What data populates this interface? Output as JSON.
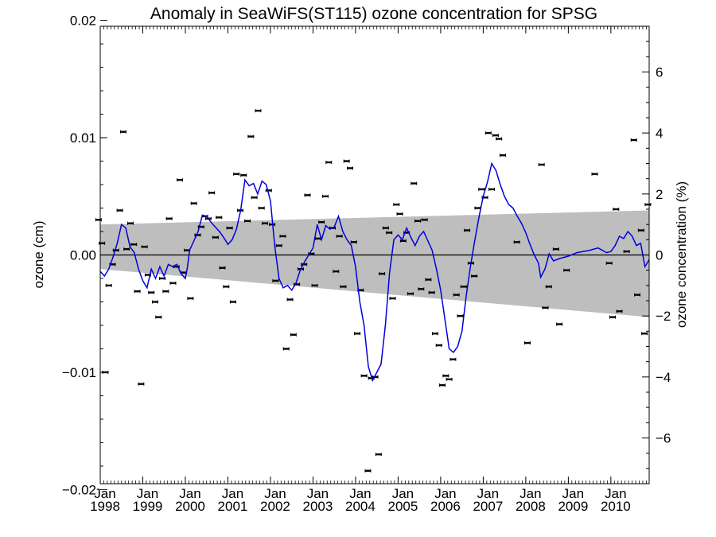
{
  "chart_data": {
    "type": "scatter",
    "title": "Anomaly in SeaWiFS(ST115) ozone concentration for SPSG",
    "ylabel": "ozone (cm)",
    "ylabel_right": "ozone concentration (%)",
    "xlabel": "",
    "xlim": [
      1998.0,
      2010.9
    ],
    "ylim": [
      -0.0195,
      0.0195
    ],
    "ylim_right": [
      -7.5,
      7.5
    ],
    "y_ticks": [
      {
        "v": -0.02,
        "label": "−0.02"
      },
      {
        "v": -0.01,
        "label": "−0.01"
      },
      {
        "v": 0.0,
        "label": "0.00"
      },
      {
        "v": 0.01,
        "label": "0.01"
      },
      {
        "v": 0.02,
        "label": "0.02"
      }
    ],
    "y_right_ticks": [
      {
        "v": -6,
        "label": "−6"
      },
      {
        "v": -4,
        "label": "−4"
      },
      {
        "v": -2,
        "label": "−2"
      },
      {
        "v": 0,
        "label": "0"
      },
      {
        "v": 2,
        "label": "2"
      },
      {
        "v": 4,
        "label": "4"
      },
      {
        "v": 6,
        "label": "6"
      }
    ],
    "x_ticks": [
      {
        "v": 1998.0,
        "month": "Jan",
        "year": "1998"
      },
      {
        "v": 1999.0,
        "month": "Jan",
        "year": "1999"
      },
      {
        "v": 2000.0,
        "month": "Jan",
        "year": "2000"
      },
      {
        "v": 2001.0,
        "month": "Jan",
        "year": "2001"
      },
      {
        "v": 2002.0,
        "month": "Jan",
        "year": "2002"
      },
      {
        "v": 2003.0,
        "month": "Jan",
        "year": "2003"
      },
      {
        "v": 2004.0,
        "month": "Jan",
        "year": "2004"
      },
      {
        "v": 2005.0,
        "month": "Jan",
        "year": "2005"
      },
      {
        "v": 2006.0,
        "month": "Jan",
        "year": "2006"
      },
      {
        "v": 2007.0,
        "month": "Jan",
        "year": "2007"
      },
      {
        "v": 2008.0,
        "month": "Jan",
        "year": "2008"
      },
      {
        "v": 2009.0,
        "month": "Jan",
        "year": "2009"
      },
      {
        "v": 2010.0,
        "month": "Jan",
        "year": "2010"
      }
    ],
    "trend_band": {
      "start": {
        "x": 1998.0,
        "lower": -0.0012,
        "upper": 0.0026
      },
      "end": {
        "x": 2010.9,
        "lower": -0.0053,
        "upper": 0.0038
      }
    },
    "zero_line": 0.0,
    "points": [
      {
        "x": 1997.96,
        "y": 0.003
      },
      {
        "x": 1998.04,
        "y": 0.001
      },
      {
        "x": 1998.12,
        "y": -0.01
      },
      {
        "x": 1998.2,
        "y": -0.0026
      },
      {
        "x": 1998.29,
        "y": -0.0008
      },
      {
        "x": 1998.37,
        "y": 0.0004
      },
      {
        "x": 1998.46,
        "y": 0.0038
      },
      {
        "x": 1998.54,
        "y": 0.0105
      },
      {
        "x": 1998.62,
        "y": 0.0005
      },
      {
        "x": 1998.71,
        "y": 0.0027
      },
      {
        "x": 1998.79,
        "y": 0.0009
      },
      {
        "x": 1998.87,
        "y": -0.0031
      },
      {
        "x": 1998.96,
        "y": -0.011
      },
      {
        "x": 1999.04,
        "y": 0.0007
      },
      {
        "x": 1999.12,
        "y": -0.0017
      },
      {
        "x": 1999.2,
        "y": -0.0032
      },
      {
        "x": 1999.29,
        "y": -0.004
      },
      {
        "x": 1999.37,
        "y": -0.0053
      },
      {
        "x": 1999.46,
        "y": -0.002
      },
      {
        "x": 1999.54,
        "y": -0.0031
      },
      {
        "x": 1999.62,
        "y": 0.0031
      },
      {
        "x": 1999.71,
        "y": -0.0024
      },
      {
        "x": 1999.79,
        "y": -0.001
      },
      {
        "x": 1999.87,
        "y": 0.0064
      },
      {
        "x": 1999.96,
        "y": -0.0015
      },
      {
        "x": 2000.04,
        "y": 0.0004
      },
      {
        "x": 2000.12,
        "y": -0.0037
      },
      {
        "x": 2000.2,
        "y": 0.0044
      },
      {
        "x": 2000.29,
        "y": 0.0017
      },
      {
        "x": 2000.37,
        "y": 0.0024
      },
      {
        "x": 2000.46,
        "y": 0.0033
      },
      {
        "x": 2000.54,
        "y": 0.0031
      },
      {
        "x": 2000.62,
        "y": 0.0053
      },
      {
        "x": 2000.71,
        "y": 0.0015
      },
      {
        "x": 2000.79,
        "y": 0.0032
      },
      {
        "x": 2000.87,
        "y": -0.0011
      },
      {
        "x": 2000.96,
        "y": -0.0027
      },
      {
        "x": 2001.04,
        "y": 0.0023
      },
      {
        "x": 2001.12,
        "y": -0.004
      },
      {
        "x": 2001.2,
        "y": 0.0069
      },
      {
        "x": 2001.29,
        "y": 0.0038
      },
      {
        "x": 2001.37,
        "y": 0.0068
      },
      {
        "x": 2001.46,
        "y": 0.0029
      },
      {
        "x": 2001.54,
        "y": 0.0101
      },
      {
        "x": 2001.62,
        "y": 0.0049
      },
      {
        "x": 2001.71,
        "y": 0.0123
      },
      {
        "x": 2001.79,
        "y": 0.004
      },
      {
        "x": 2001.87,
        "y": 0.0027
      },
      {
        "x": 2001.96,
        "y": 0.0055
      },
      {
        "x": 2002.04,
        "y": 0.0026
      },
      {
        "x": 2002.12,
        "y": -0.0022
      },
      {
        "x": 2002.2,
        "y": 0.0008
      },
      {
        "x": 2002.29,
        "y": 0.0016
      },
      {
        "x": 2002.37,
        "y": -0.008
      },
      {
        "x": 2002.46,
        "y": -0.0038
      },
      {
        "x": 2002.54,
        "y": -0.0068
      },
      {
        "x": 2002.62,
        "y": -0.0025
      },
      {
        "x": 2002.71,
        "y": -0.0012
      },
      {
        "x": 2002.79,
        "y": -0.0008
      },
      {
        "x": 2002.87,
        "y": 0.0051
      },
      {
        "x": 2002.96,
        "y": 0.0001
      },
      {
        "x": 2003.04,
        "y": -0.0026
      },
      {
        "x": 2003.12,
        "y": 0.0014
      },
      {
        "x": 2003.2,
        "y": 0.0028
      },
      {
        "x": 2003.29,
        "y": 0.005
      },
      {
        "x": 2003.37,
        "y": 0.0079
      },
      {
        "x": 2003.46,
        "y": 0.0023
      },
      {
        "x": 2003.54,
        "y": -0.0014
      },
      {
        "x": 2003.62,
        "y": 0.0016
      },
      {
        "x": 2003.71,
        "y": -0.0027
      },
      {
        "x": 2003.79,
        "y": 0.008
      },
      {
        "x": 2003.87,
        "y": 0.0074
      },
      {
        "x": 2003.96,
        "y": 0.0011
      },
      {
        "x": 2004.04,
        "y": -0.0067
      },
      {
        "x": 2004.12,
        "y": -0.003
      },
      {
        "x": 2004.2,
        "y": -0.0103
      },
      {
        "x": 2004.29,
        "y": -0.0184
      },
      {
        "x": 2004.37,
        "y": -0.0105
      },
      {
        "x": 2004.46,
        "y": -0.0104
      },
      {
        "x": 2004.54,
        "y": -0.017
      },
      {
        "x": 2004.62,
        "y": -0.0016
      },
      {
        "x": 2004.71,
        "y": 0.0023
      },
      {
        "x": 2004.79,
        "y": 0.0019
      },
      {
        "x": 2004.87,
        "y": -0.0037
      },
      {
        "x": 2004.96,
        "y": 0.0043
      },
      {
        "x": 2005.04,
        "y": 0.0035
      },
      {
        "x": 2005.12,
        "y": 0.0012
      },
      {
        "x": 2005.2,
        "y": 0.0019
      },
      {
        "x": 2005.29,
        "y": -0.0033
      },
      {
        "x": 2005.37,
        "y": 0.0061
      },
      {
        "x": 2005.46,
        "y": 0.0029
      },
      {
        "x": 2005.54,
        "y": -0.0029
      },
      {
        "x": 2005.62,
        "y": 0.003
      },
      {
        "x": 2005.71,
        "y": -0.0021
      },
      {
        "x": 2005.79,
        "y": -0.0032
      },
      {
        "x": 2005.87,
        "y": -0.0067
      },
      {
        "x": 2005.96,
        "y": -0.0077
      },
      {
        "x": 2006.04,
        "y": -0.0111
      },
      {
        "x": 2006.12,
        "y": -0.0103
      },
      {
        "x": 2006.2,
        "y": -0.0106
      },
      {
        "x": 2006.29,
        "y": -0.0089
      },
      {
        "x": 2006.37,
        "y": -0.0034
      },
      {
        "x": 2006.46,
        "y": -0.0052
      },
      {
        "x": 2006.54,
        "y": -0.0027
      },
      {
        "x": 2006.62,
        "y": 0.0021
      },
      {
        "x": 2006.71,
        "y": -0.0007
      },
      {
        "x": 2006.79,
        "y": -0.0018
      },
      {
        "x": 2006.87,
        "y": 0.004
      },
      {
        "x": 2006.96,
        "y": 0.0056
      },
      {
        "x": 2007.04,
        "y": 0.0049
      },
      {
        "x": 2007.12,
        "y": 0.0104
      },
      {
        "x": 2007.2,
        "y": 0.0056
      },
      {
        "x": 2007.29,
        "y": 0.0102
      },
      {
        "x": 2007.37,
        "y": 0.0099
      },
      {
        "x": 2007.46,
        "y": 0.0085
      },
      {
        "x": 2007.79,
        "y": 0.0011
      },
      {
        "x": 2008.04,
        "y": -0.0075
      },
      {
        "x": 2008.37,
        "y": 0.0077
      },
      {
        "x": 2008.46,
        "y": -0.0045
      },
      {
        "x": 2008.54,
        "y": -0.0027
      },
      {
        "x": 2008.71,
        "y": 0.0005
      },
      {
        "x": 2008.79,
        "y": -0.0059
      },
      {
        "x": 2008.96,
        "y": -0.0013
      },
      {
        "x": 2009.62,
        "y": 0.0069
      },
      {
        "x": 2009.96,
        "y": -0.0007
      },
      {
        "x": 2010.04,
        "y": -0.0053
      },
      {
        "x": 2010.12,
        "y": 0.0039
      },
      {
        "x": 2010.2,
        "y": -0.0048
      },
      {
        "x": 2010.37,
        "y": 0.0003
      },
      {
        "x": 2010.54,
        "y": 0.0098
      },
      {
        "x": 2010.62,
        "y": -0.0034
      },
      {
        "x": 2010.71,
        "y": 0.0021
      },
      {
        "x": 2010.79,
        "y": -0.0067
      },
      {
        "x": 2010.87,
        "y": 0.0043
      }
    ],
    "smoothed_line": {
      "color": "#0000dd",
      "points": [
        [
          1998.0,
          -0.0014
        ],
        [
          1998.1,
          -0.0018
        ],
        [
          1998.2,
          -0.0012
        ],
        [
          1998.3,
          -0.0002
        ],
        [
          1998.4,
          0.001
        ],
        [
          1998.5,
          0.0026
        ],
        [
          1998.6,
          0.0023
        ],
        [
          1998.7,
          0.0007
        ],
        [
          1998.8,
          0.0002
        ],
        [
          1998.9,
          -0.0012
        ],
        [
          1999.0,
          -0.0022
        ],
        [
          1999.1,
          -0.0028
        ],
        [
          1999.2,
          -0.0012
        ],
        [
          1999.3,
          -0.002
        ],
        [
          1999.4,
          -0.001
        ],
        [
          1999.5,
          -0.0018
        ],
        [
          1999.6,
          -0.0008
        ],
        [
          1999.7,
          -0.001
        ],
        [
          1999.8,
          -0.0008
        ],
        [
          1999.9,
          -0.0016
        ],
        [
          2000.0,
          -0.002
        ],
        [
          2000.05,
          -0.001
        ],
        [
          2000.1,
          0.0004
        ],
        [
          2000.2,
          0.0012
        ],
        [
          2000.3,
          0.002
        ],
        [
          2000.4,
          0.0034
        ],
        [
          2000.5,
          0.0033
        ],
        [
          2000.6,
          0.0028
        ],
        [
          2000.7,
          0.0024
        ],
        [
          2000.8,
          0.002
        ],
        [
          2000.9,
          0.0015
        ],
        [
          2001.0,
          0.0009
        ],
        [
          2001.1,
          0.0013
        ],
        [
          2001.2,
          0.0022
        ],
        [
          2001.3,
          0.0038
        ],
        [
          2001.4,
          0.0064
        ],
        [
          2001.5,
          0.0059
        ],
        [
          2001.6,
          0.0061
        ],
        [
          2001.7,
          0.0052
        ],
        [
          2001.8,
          0.0063
        ],
        [
          2001.9,
          0.006
        ],
        [
          2002.0,
          0.0046
        ],
        [
          2002.1,
          0.0008
        ],
        [
          2002.2,
          -0.002
        ],
        [
          2002.3,
          -0.0028
        ],
        [
          2002.4,
          -0.0026
        ],
        [
          2002.5,
          -0.003
        ],
        [
          2002.6,
          -0.0024
        ],
        [
          2002.7,
          -0.0013
        ],
        [
          2002.8,
          -0.0006
        ],
        [
          2002.9,
          0.0
        ],
        [
          2003.0,
          0.0006
        ],
        [
          2003.1,
          0.0026
        ],
        [
          2003.2,
          0.0013
        ],
        [
          2003.3,
          0.0025
        ],
        [
          2003.4,
          0.0022
        ],
        [
          2003.5,
          0.0024
        ],
        [
          2003.6,
          0.0033
        ],
        [
          2003.7,
          0.002
        ],
        [
          2003.8,
          0.0013
        ],
        [
          2003.9,
          0.0008
        ],
        [
          2004.0,
          -0.001
        ],
        [
          2004.1,
          -0.004
        ],
        [
          2004.2,
          -0.006
        ],
        [
          2004.3,
          -0.0095
        ],
        [
          2004.4,
          -0.0107
        ],
        [
          2004.5,
          -0.01
        ],
        [
          2004.6,
          -0.0093
        ],
        [
          2004.7,
          -0.006
        ],
        [
          2004.8,
          -0.0015
        ],
        [
          2004.9,
          0.0013
        ],
        [
          2005.0,
          0.0017
        ],
        [
          2005.1,
          0.0013
        ],
        [
          2005.2,
          0.0023
        ],
        [
          2005.3,
          0.0015
        ],
        [
          2005.4,
          0.0008
        ],
        [
          2005.5,
          0.0016
        ],
        [
          2005.6,
          0.002
        ],
        [
          2005.7,
          0.0012
        ],
        [
          2005.8,
          0.0004
        ],
        [
          2005.9,
          -0.0012
        ],
        [
          2006.0,
          -0.003
        ],
        [
          2006.1,
          -0.0055
        ],
        [
          2006.2,
          -0.008
        ],
        [
          2006.3,
          -0.0083
        ],
        [
          2006.4,
          -0.0078
        ],
        [
          2006.5,
          -0.0065
        ],
        [
          2006.6,
          -0.0035
        ],
        [
          2006.7,
          -0.001
        ],
        [
          2006.8,
          0.0012
        ],
        [
          2006.9,
          0.0032
        ],
        [
          2007.0,
          0.005
        ],
        [
          2007.1,
          0.0062
        ],
        [
          2007.2,
          0.0078
        ],
        [
          2007.3,
          0.0072
        ],
        [
          2007.4,
          0.006
        ],
        [
          2007.5,
          0.005
        ],
        [
          2007.6,
          0.0043
        ],
        [
          2007.7,
          0.004
        ],
        [
          2007.8,
          0.0033
        ],
        [
          2007.9,
          0.0027
        ],
        [
          2008.0,
          0.0019
        ],
        [
          2008.1,
          0.0009
        ],
        [
          2008.2,
          0.0
        ],
        [
          2008.3,
          -0.0007
        ],
        [
          2008.35,
          -0.0019
        ],
        [
          2008.45,
          -0.0012
        ],
        [
          2008.55,
          0.0001
        ],
        [
          2008.65,
          -0.0005
        ],
        [
          2008.8,
          -0.0003
        ],
        [
          2009.0,
          -0.0001
        ],
        [
          2009.2,
          0.0002
        ],
        [
          2009.5,
          0.0004
        ],
        [
          2009.7,
          0.0006
        ],
        [
          2009.9,
          0.0002
        ],
        [
          2010.0,
          0.0003
        ],
        [
          2010.1,
          0.0008
        ],
        [
          2010.2,
          0.0016
        ],
        [
          2010.3,
          0.0014
        ],
        [
          2010.4,
          0.002
        ],
        [
          2010.5,
          0.0016
        ],
        [
          2010.6,
          0.0008
        ],
        [
          2010.7,
          0.001
        ],
        [
          2010.8,
          -0.001
        ],
        [
          2010.9,
          -0.0004
        ]
      ]
    }
  }
}
